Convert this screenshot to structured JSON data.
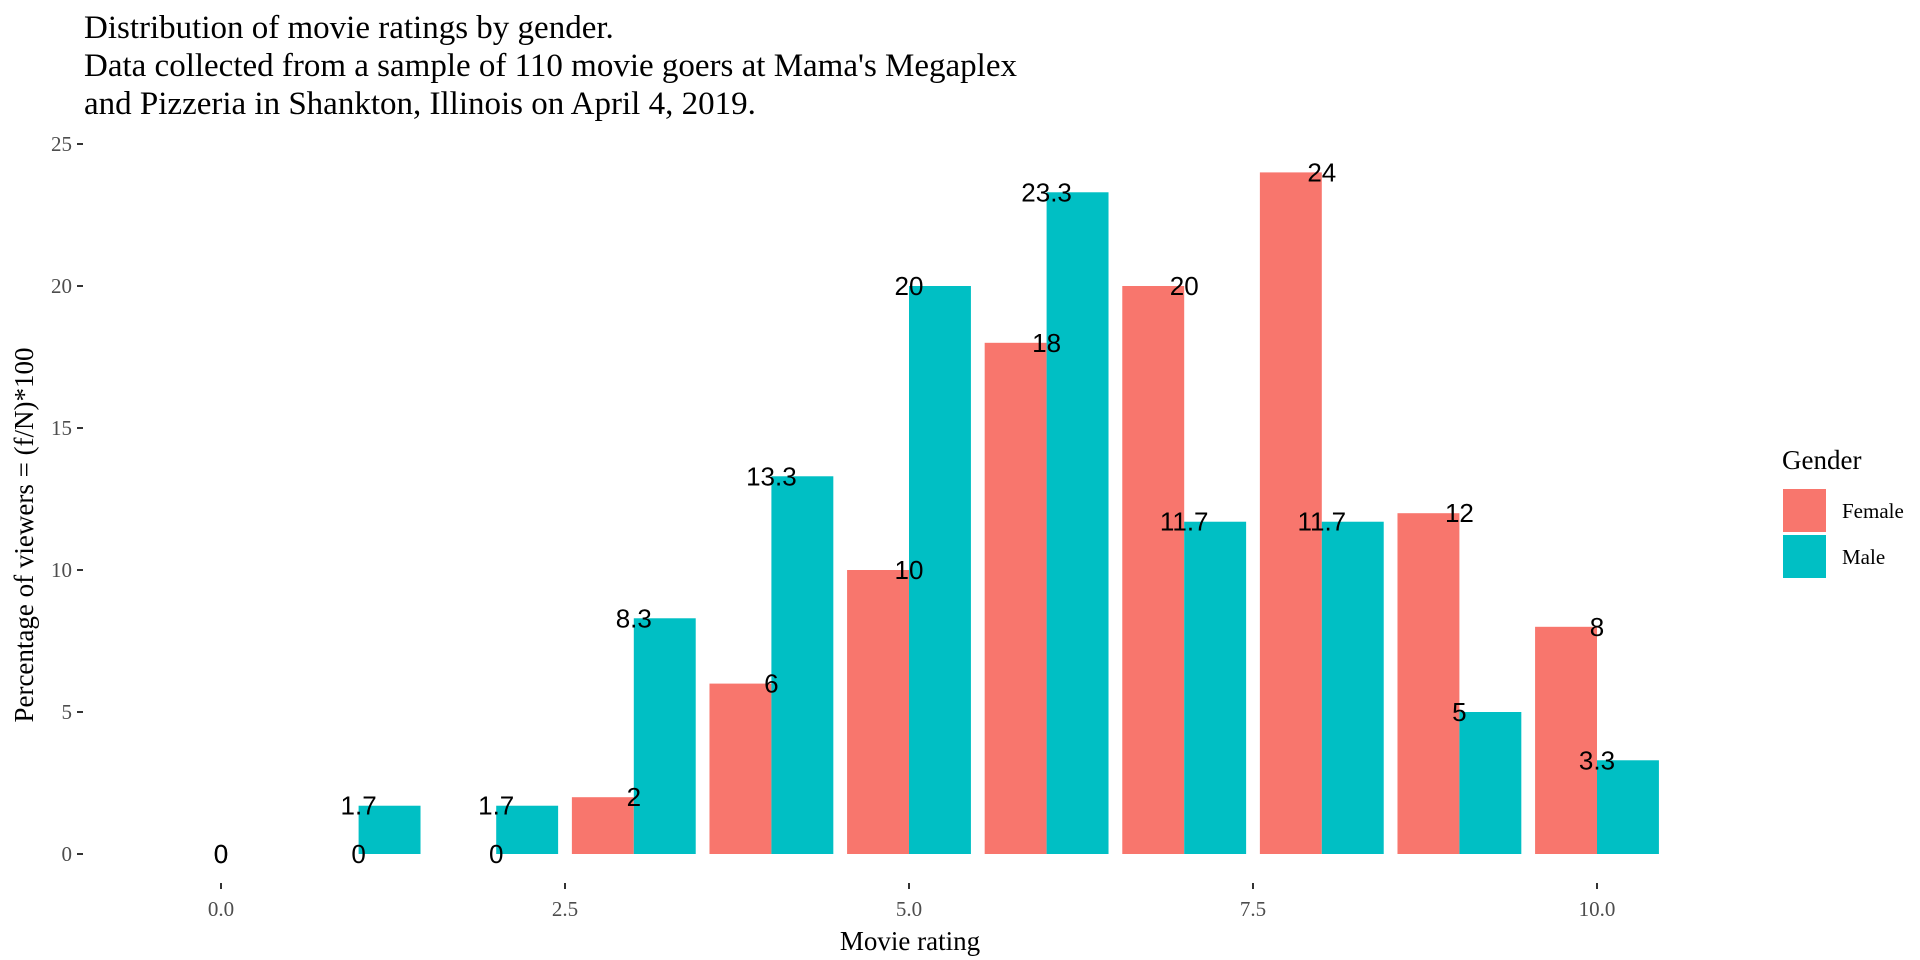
{
  "chart_data": {
    "type": "bar",
    "title": "Distribution of movie ratings by gender.",
    "subtitle": [
      "Data collected from a sample of 110 movie goers at Mama's Megaplex",
      "and Pizzeria in Shankton, Illinois on April 4, 2019."
    ],
    "xlabel": "Movie rating",
    "ylabel": "Percentage of viewers = (f/N)*100",
    "x_ticks": [
      {
        "value": 0,
        "label": "0.0"
      },
      {
        "value": 2.5,
        "label": "2.5"
      },
      {
        "value": 5,
        "label": "5.0"
      },
      {
        "value": 7.5,
        "label": "7.5"
      },
      {
        "value": 10,
        "label": "10.0"
      }
    ],
    "y_ticks": [
      {
        "value": 0,
        "label": "0"
      },
      {
        "value": 5,
        "label": "5"
      },
      {
        "value": 10,
        "label": "10"
      },
      {
        "value": 15,
        "label": "15"
      },
      {
        "value": 20,
        "label": "20"
      },
      {
        "value": 25,
        "label": "25"
      }
    ],
    "xlim": [
      -0.5,
      10.9
    ],
    "ylim": [
      0,
      25
    ],
    "grid": false,
    "legend": {
      "title": "Gender",
      "position": "right"
    },
    "x": [
      0,
      1,
      2,
      3,
      4,
      5,
      6,
      7,
      8,
      9,
      10
    ],
    "series": [
      {
        "name": "Female",
        "color": "#F8766D",
        "values": [
          0,
          0,
          0,
          2,
          6,
          10,
          18,
          20,
          24,
          12,
          8
        ],
        "labels": [
          "0",
          "0",
          "0",
          "2",
          "6",
          "10",
          "18",
          "20",
          "24",
          "12",
          "8"
        ]
      },
      {
        "name": "Male",
        "color": "#00BFC4",
        "values": [
          0,
          1.7,
          1.7,
          8.3,
          13.3,
          20,
          23.3,
          11.7,
          11.7,
          5,
          3.3
        ],
        "labels": [
          "0",
          "1.7",
          "1.7",
          "8.3",
          "13.3",
          "20",
          "23.3",
          "11.7",
          "11.7",
          "5",
          "3.3"
        ]
      }
    ]
  }
}
